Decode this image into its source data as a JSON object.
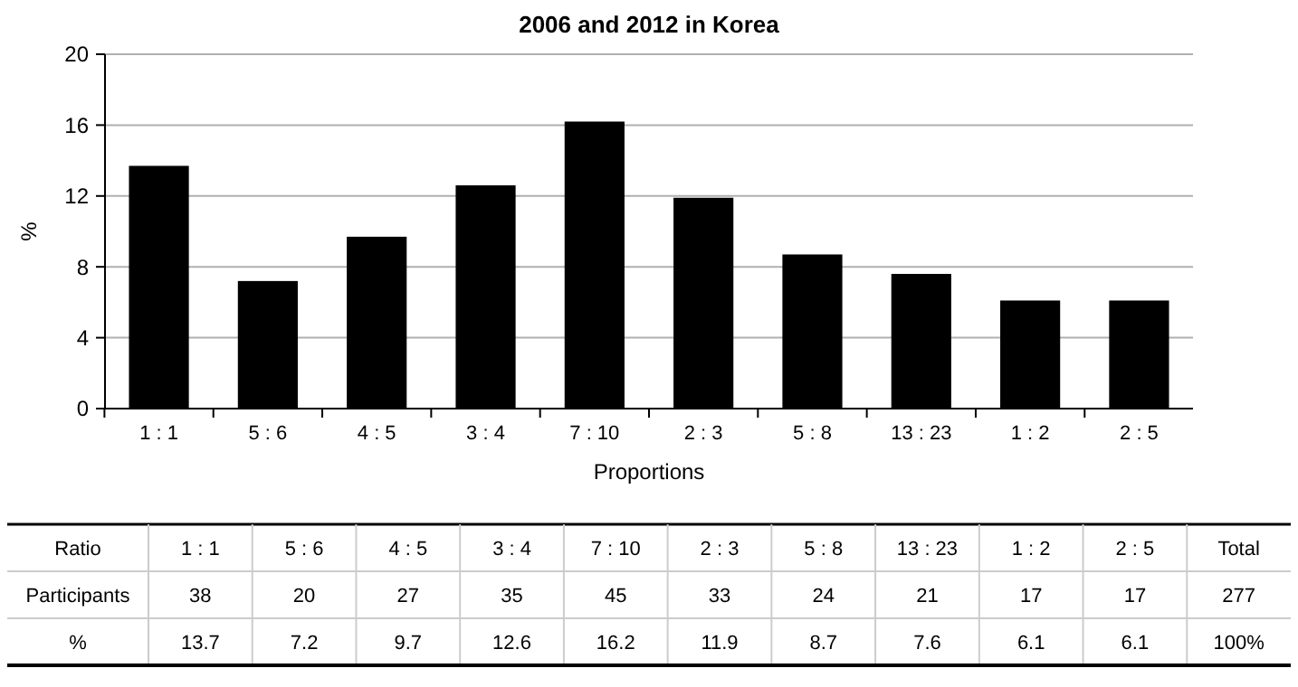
{
  "chart_data": [
    {
      "type": "bar",
      "title": "2006 and 2012 in Korea",
      "xlabel": "Proportions",
      "ylabel": "%",
      "categories": [
        "1 : 1",
        "5 : 6",
        "4 : 5",
        "3 : 4",
        "7 : 10",
        "2 : 3",
        "5 : 8",
        "13 : 23",
        "1 : 2",
        "2 : 5"
      ],
      "values": [
        13.7,
        7.2,
        9.7,
        12.6,
        16.2,
        11.9,
        8.7,
        7.6,
        6.1,
        6.1
      ],
      "color": "#000000",
      "ylim": [
        0,
        20
      ],
      "yticks": [
        0,
        4,
        8,
        12,
        16,
        20
      ],
      "grid": "y"
    },
    {
      "type": "other",
      "annotations": [
        "Ratio",
        "1 : 1",
        "5 : 6",
        "4 : 5",
        "3 : 4",
        "7 : 10",
        "2 : 3",
        "5 : 8",
        "13 : 23",
        "1 : 2",
        "2 : 5",
        "Total",
        "Participants",
        "38",
        "20",
        "27",
        "35",
        "45",
        "33",
        "24",
        "21",
        "17",
        "17",
        "277",
        "%",
        "13.7",
        "7.2",
        "9.7",
        "12.6",
        "16.2",
        "11.9",
        "8.7",
        "7.6",
        "6.1",
        "6.1",
        "100%"
      ]
    }
  ]
}
